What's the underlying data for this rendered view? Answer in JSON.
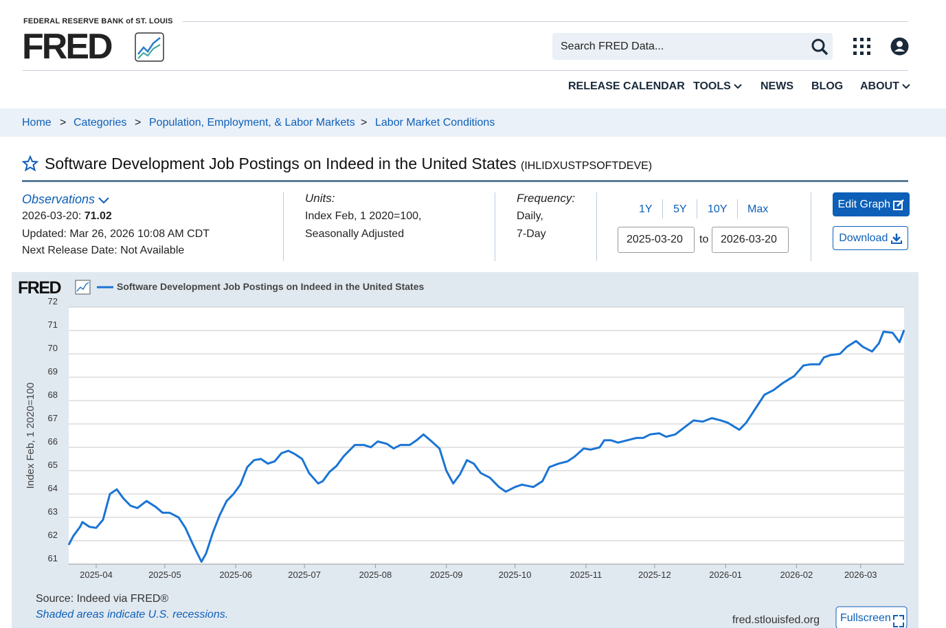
{
  "header": {
    "org": "FEDERAL RESERVE BANK of ST. LOUIS",
    "logo": "FRED",
    "search": "Search FRED Data...",
    "nav": [
      "RELEASE CALENDAR",
      "TOOLS",
      "NEWS",
      "BLOG",
      "ABOUT"
    ]
  },
  "breadcrumb": {
    "items": [
      "Home",
      "Categories",
      "Population, Employment, & Labor Markets",
      "Labor Market Conditions"
    ],
    "separator": ">"
  },
  "series_title": "Software Development Job Postings on Indeed in the United States",
  "series_id": "(IHLIDXUSTPSOFTDEVE)",
  "observations": {
    "label": "Observations",
    "date": "2026-03-20:",
    "value": "71.02",
    "updated": "Updated: Mar 26, 2026 10:08 AM CDT",
    "next_release": "Next Release Date: Not Available"
  },
  "units": {
    "label": "Units:",
    "lines": [
      "Index Feb, 1 2020=100,",
      "Seasonally Adjusted"
    ]
  },
  "frequency": {
    "label": "Frequency:",
    "lines": [
      "Daily,",
      "7-Day"
    ]
  },
  "range": {
    "buttons": [
      "1Y",
      "5Y",
      "10Y",
      "Max"
    ],
    "start": "2025-03-20",
    "to": "to",
    "end": "2026-03-20"
  },
  "actions": {
    "edit": "Edit Graph",
    "download": "Download"
  },
  "chart_data": {
    "type": "line",
    "logo": "FRED",
    "ylabel": "Index Feb, 1 2020=100",
    "source": "Source: Indeed via FRED®",
    "note": "Shaded areas indicate U.S. recessions.",
    "site": "fred.stlouisfed.org",
    "fullscreen": "Fullscreen",
    "xlim": [
      "2025-03-20",
      "2026-03-20"
    ],
    "xticks": [
      "2025-04",
      "2025-05",
      "2025-06",
      "2025-07",
      "2025-08",
      "2025-09",
      "2025-10",
      "2025-11",
      "2025-12",
      "2026-01",
      "2026-02",
      "2026-03"
    ],
    "ylim": [
      61,
      72
    ],
    "yticks": [
      61,
      62,
      63,
      64,
      65,
      66,
      67,
      68,
      69,
      70,
      71,
      72
    ],
    "grid": true,
    "x": [
      "2025-03-20",
      "2025-03-22",
      "2025-03-25",
      "2025-03-26",
      "2025-03-29",
      "2025-04-01",
      "2025-04-04",
      "2025-04-07",
      "2025-04-10",
      "2025-04-13",
      "2025-04-16",
      "2025-04-19",
      "2025-04-23",
      "2025-04-27",
      "2025-04-30",
      "2025-05-03",
      "2025-05-07",
      "2025-05-10",
      "2025-05-13",
      "2025-05-17",
      "2025-05-19",
      "2025-05-22",
      "2025-05-25",
      "2025-05-28",
      "2025-05-31",
      "2025-06-03",
      "2025-06-06",
      "2025-06-09",
      "2025-06-12",
      "2025-06-15",
      "2025-06-18",
      "2025-06-21",
      "2025-06-24",
      "2025-06-27",
      "2025-06-30",
      "2025-07-03",
      "2025-07-07",
      "2025-07-09",
      "2025-07-12",
      "2025-07-15",
      "2025-07-18",
      "2025-07-23",
      "2025-07-27",
      "2025-07-30",
      "2025-08-02",
      "2025-08-06",
      "2025-08-09",
      "2025-08-12",
      "2025-08-16",
      "2025-08-19",
      "2025-08-22",
      "2025-08-25",
      "2025-08-29",
      "2025-09-01",
      "2025-09-04",
      "2025-09-07",
      "2025-09-10",
      "2025-09-13",
      "2025-09-16",
      "2025-09-20",
      "2025-09-24",
      "2025-09-27",
      "2025-10-01",
      "2025-10-04",
      "2025-10-09",
      "2025-10-13",
      "2025-10-16",
      "2025-10-20",
      "2025-10-24",
      "2025-10-27",
      "2025-10-31",
      "2025-11-03",
      "2025-11-07",
      "2025-11-09",
      "2025-11-12",
      "2025-11-15",
      "2025-11-19",
      "2025-11-23",
      "2025-11-26",
      "2025-11-29",
      "2025-12-03",
      "2025-12-06",
      "2025-12-10",
      "2025-12-14",
      "2025-12-18",
      "2025-12-22",
      "2025-12-26",
      "2025-12-30",
      "2026-01-02",
      "2026-01-07",
      "2026-01-10",
      "2026-01-13",
      "2026-01-18",
      "2026-01-22",
      "2026-01-26",
      "2026-01-31",
      "2026-02-04",
      "2026-02-07",
      "2026-02-11",
      "2026-02-13",
      "2026-02-16",
      "2026-02-20",
      "2026-02-23",
      "2026-02-27",
      "2026-03-02",
      "2026-03-06",
      "2026-03-09",
      "2026-03-11",
      "2026-03-15",
      "2026-03-18",
      "2026-03-20"
    ],
    "series": [
      {
        "name": "Software Development Job Postings on Indeed in the United States",
        "color": "#1a74d4",
        "values": [
          61.82,
          62.2,
          62.6,
          62.8,
          62.6,
          62.55,
          62.9,
          64.0,
          64.2,
          63.8,
          63.5,
          63.4,
          63.7,
          63.45,
          63.2,
          63.2,
          63.0,
          62.55,
          61.9,
          61.1,
          61.45,
          62.35,
          63.1,
          63.7,
          64.0,
          64.4,
          65.15,
          65.45,
          65.5,
          65.3,
          65.4,
          65.75,
          65.85,
          65.7,
          65.5,
          64.9,
          64.45,
          64.55,
          64.95,
          65.2,
          65.6,
          66.1,
          66.1,
          66.0,
          66.25,
          66.15,
          65.95,
          66.1,
          66.1,
          66.3,
          66.55,
          66.3,
          65.95,
          65.0,
          64.45,
          64.85,
          65.45,
          65.3,
          64.9,
          64.7,
          64.3,
          64.1,
          64.3,
          64.4,
          64.3,
          64.55,
          65.15,
          65.3,
          65.4,
          65.6,
          65.95,
          65.9,
          66.0,
          66.3,
          66.3,
          66.2,
          66.3,
          66.4,
          66.4,
          66.55,
          66.6,
          66.45,
          66.55,
          66.85,
          67.15,
          67.1,
          67.25,
          67.15,
          67.05,
          66.75,
          67.05,
          67.5,
          68.25,
          68.45,
          68.75,
          69.05,
          69.5,
          69.55,
          69.55,
          69.85,
          69.95,
          70.0,
          70.3,
          70.55,
          70.3,
          70.1,
          70.45,
          70.95,
          70.9,
          70.5,
          71.02
        ]
      }
    ]
  }
}
